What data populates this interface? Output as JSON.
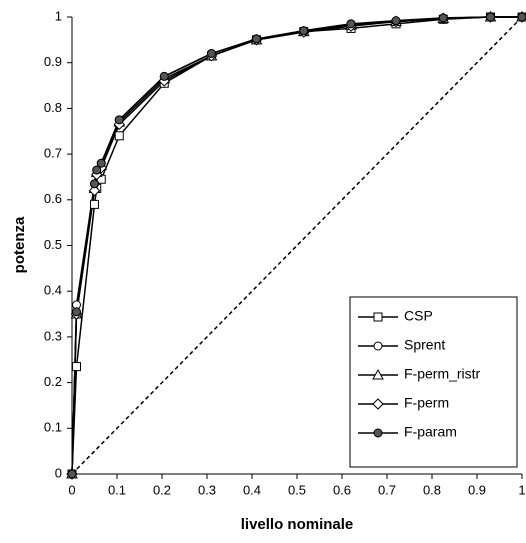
{
  "chart_data": {
    "type": "line",
    "xlabel": "livello nominale",
    "ylabel": "potenza",
    "x": [
      0,
      0.01,
      0.05,
      0.055,
      0.065,
      0.105,
      0.205,
      0.31,
      0.41,
      0.515,
      0.62,
      0.72,
      0.825,
      0.93,
      1
    ],
    "series": [
      {
        "name": "CSP",
        "color": "#000000",
        "marker": "square",
        "fill": "#ffffff",
        "values": [
          0,
          0.235,
          0.59,
          0.625,
          0.645,
          0.74,
          0.855,
          0.915,
          0.95,
          0.968,
          0.975,
          0.985,
          0.995,
          1,
          1
        ]
      },
      {
        "name": "Sprent",
        "color": "#000000",
        "marker": "circle",
        "fill": "#ffffff",
        "values": [
          0,
          0.37,
          0.635,
          0.665,
          0.68,
          0.775,
          0.87,
          0.92,
          0.952,
          0.97,
          0.985,
          0.99,
          0.997,
          1,
          1
        ]
      },
      {
        "name": "F-perm_ristr",
        "color": "#000000",
        "marker": "triangle",
        "fill": "#ffffff",
        "values": [
          0,
          0.35,
          0.625,
          0.66,
          0.675,
          0.77,
          0.865,
          0.915,
          0.95,
          0.968,
          0.982,
          0.99,
          0.997,
          1,
          1
        ]
      },
      {
        "name": "F-perm",
        "color": "#000000",
        "marker": "diamond",
        "fill": "#ffffff",
        "values": [
          0,
          0.35,
          0.62,
          0.655,
          0.67,
          0.765,
          0.86,
          0.915,
          0.95,
          0.967,
          0.98,
          0.99,
          0.997,
          1,
          1
        ]
      },
      {
        "name": "F-param",
        "color": "#000000",
        "marker": "circle",
        "fill": "#555555",
        "values": [
          0,
          0.355,
          0.635,
          0.665,
          0.68,
          0.775,
          0.87,
          0.92,
          0.952,
          0.97,
          0.985,
          0.992,
          0.998,
          1,
          1
        ]
      }
    ],
    "xlim": [
      0,
      1
    ],
    "ylim": [
      0,
      1
    ],
    "xticks": [
      0,
      0.1,
      0.2,
      0.3,
      0.4,
      0.5,
      0.6,
      0.7,
      0.8,
      0.9,
      1
    ],
    "yticks": [
      0,
      0.1,
      0.2,
      0.3,
      0.4,
      0.5,
      0.6,
      0.7,
      0.8,
      0.9,
      1
    ],
    "grid": false,
    "legend": "lower right"
  }
}
